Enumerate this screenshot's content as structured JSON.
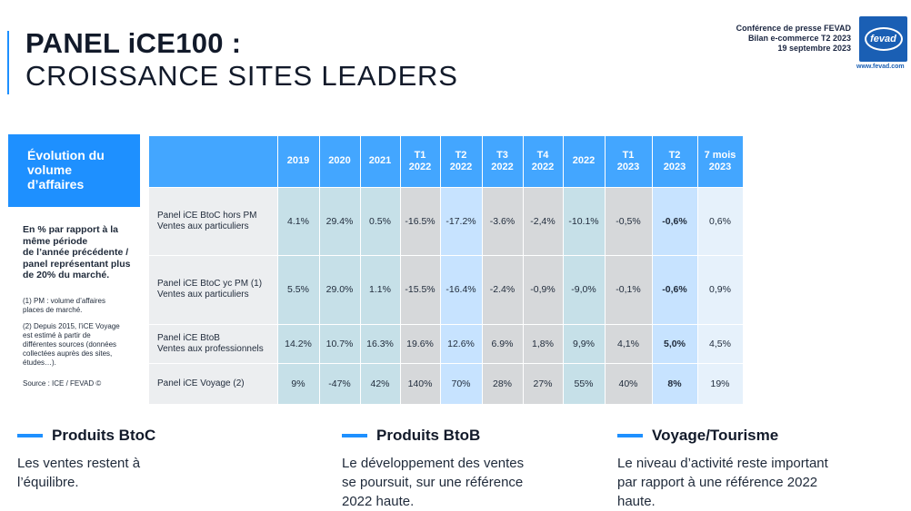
{
  "title": {
    "line1": "PANEL iCE100 :",
    "line2": "CROISSANCE SITES LEADERS"
  },
  "conference": {
    "line1": "Conférence de presse FEVAD",
    "line2": "Bilan e-commerce T2 2023",
    "line3": "19 septembre 2023"
  },
  "logo": {
    "text": "fevad",
    "url": "www.fevad.com"
  },
  "sidebar": {
    "heading_lines": [
      "Évolution du",
      "volume",
      "d’affaires"
    ],
    "description_lines": [
      "En % par rapport à la",
      "même période",
      "de l’année précédente /",
      "panel représentant plus",
      "de 20% du marché."
    ],
    "note1_lines": [
      "(1) PM : volume d’affaires",
      "places de marché."
    ],
    "note2_lines": [
      "(2) Depuis 2015, l’iCE Voyage",
      "est estimé à partir de",
      "différentes sources (données",
      "collectées auprès des sites,",
      "études…)."
    ],
    "source": "Source : ICE / FEVAD ©"
  },
  "table": {
    "columns": [
      {
        "l1": "2019",
        "l2": ""
      },
      {
        "l1": "2020",
        "l2": ""
      },
      {
        "l1": "2021",
        "l2": ""
      },
      {
        "l1": "T1",
        "l2": "2022"
      },
      {
        "l1": "T2",
        "l2": "2022"
      },
      {
        "l1": "T3",
        "l2": "2022"
      },
      {
        "l1": "T4",
        "l2": "2022"
      },
      {
        "l1": "2022",
        "l2": ""
      },
      {
        "l1": "T1",
        "l2": "2023"
      },
      {
        "l1": "T2",
        "l2": "2023"
      },
      {
        "l1": "7 mois",
        "l2": "2023"
      }
    ],
    "rows": [
      {
        "label1": "Panel iCE BtoC hors PM",
        "label2": "Ventes aux particuliers",
        "values": [
          "4.1%",
          "29.4%",
          "0.5%",
          "-16.5%",
          "-17.2%",
          "-3.6%",
          "-2,4%",
          "-10.1%",
          "-0,5%",
          "-0,6%",
          "0,6%"
        ]
      },
      {
        "label1": "Panel iCE BtoC yc PM (1)",
        "label2": "Ventes aux particuliers",
        "values": [
          "5.5%",
          "29.0%",
          "1.1%",
          "-15.5%",
          "-16.4%",
          "-2.4%",
          "-0,9%",
          "-9,0%",
          "-0,1%",
          "-0,6%",
          "0,9%"
        ]
      },
      {
        "label1": "Panel iCE BtoB",
        "label2": "Ventes aux professionnels",
        "values": [
          "14.2%",
          "10.7%",
          "16.3%",
          "19.6%",
          "12.6%",
          "6.9%",
          "1,8%",
          "9,9%",
          "4,1%",
          "5,0%",
          "4,5%"
        ]
      },
      {
        "label1": "Panel iCE Voyage (2)",
        "label2": "",
        "values": [
          "9%",
          "-47%",
          "42%",
          "140%",
          "70%",
          "28%",
          "27%",
          "55%",
          "40%",
          "8%",
          "19%"
        ]
      }
    ]
  },
  "categories": [
    {
      "title": "Produits BtoC",
      "lines": [
        "Les ventes restent à",
        "l’équilibre."
      ]
    },
    {
      "title": "Produits BtoB",
      "lines": [
        "Le développement des ventes",
        "se poursuit, sur une référence",
        "2022 haute."
      ]
    },
    {
      "title": "Voyage/Tourisme",
      "lines": [
        "Le niveau d’activité reste important",
        "par rapport à une référence 2022",
        "haute."
      ]
    }
  ],
  "colors": {
    "accent": "#1e90ff",
    "header": "#43a6ff",
    "logo": "#1a5fb4"
  }
}
